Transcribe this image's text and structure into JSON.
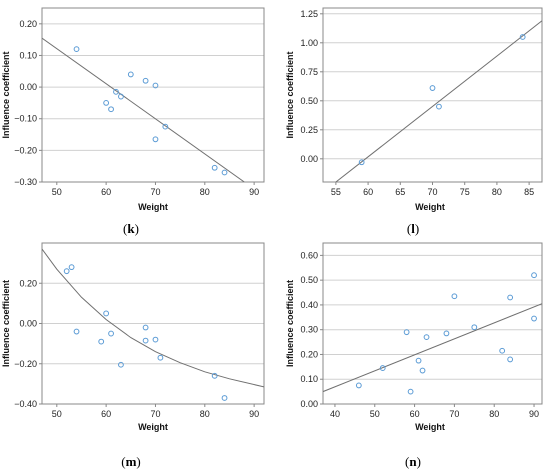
{
  "chart_data": [
    {
      "type": "scatter",
      "panel_label": "(k)",
      "xlabel": "Weight",
      "ylabel": "Influence coefficient",
      "xlim": [
        47,
        92
      ],
      "ylim": [
        -0.3,
        0.25
      ],
      "xticks": [
        50,
        60,
        70,
        80,
        90
      ],
      "yticks": [
        -0.3,
        -0.2,
        -0.1,
        0.0,
        0.1,
        0.2
      ],
      "ytick_labels": [
        "−0.30",
        "−0.20",
        "−0.10",
        "0.00",
        "0.10",
        "0.20"
      ],
      "grid": "horizontal",
      "fit": "linear",
      "fit_line": [
        [
          47,
          0.155
        ],
        [
          88,
          -0.3
        ]
      ],
      "points": [
        [
          54,
          0.12
        ],
        [
          60,
          -0.05
        ],
        [
          61,
          -0.07
        ],
        [
          62,
          -0.015
        ],
        [
          63,
          -0.03
        ],
        [
          65,
          0.04
        ],
        [
          68,
          0.02
        ],
        [
          70,
          0.005
        ],
        [
          70,
          -0.165
        ],
        [
          72,
          -0.125
        ],
        [
          82,
          -0.255
        ],
        [
          84,
          -0.27
        ]
      ]
    },
    {
      "type": "scatter",
      "panel_label": "(l)",
      "xlabel": "Weight",
      "ylabel": "Influence coefficient",
      "xlim": [
        53,
        87
      ],
      "ylim": [
        -0.2,
        1.3
      ],
      "xticks": [
        55,
        60,
        65,
        70,
        75,
        80,
        85
      ],
      "yticks": [
        0.0,
        0.25,
        0.5,
        0.75,
        1.0,
        1.25
      ],
      "ytick_labels": [
        "0.00",
        "0.25",
        "0.50",
        "0.75",
        "1.00",
        "1.25"
      ],
      "grid": "horizontal",
      "fit": "linear",
      "fit_line": [
        [
          55,
          -0.2
        ],
        [
          87,
          1.19
        ]
      ],
      "points": [
        [
          59,
          -0.03
        ],
        [
          70,
          0.61
        ],
        [
          71,
          0.45
        ],
        [
          84,
          1.05
        ]
      ]
    },
    {
      "type": "scatter",
      "panel_label": "(m)",
      "xlabel": "Weight",
      "ylabel": "Influence coefficient",
      "xlim": [
        47,
        92
      ],
      "ylim": [
        -0.4,
        0.4
      ],
      "xticks": [
        50,
        60,
        70,
        80,
        90
      ],
      "yticks": [
        -0.4,
        -0.2,
        0.0,
        0.2
      ],
      "ytick_labels": [
        "−0.40",
        "−0.20",
        "0.00",
        "0.20"
      ],
      "grid": "horizontal",
      "fit": "curve",
      "fit_curve": [
        [
          47,
          0.37
        ],
        [
          50,
          0.27
        ],
        [
          55,
          0.13
        ],
        [
          60,
          0.02
        ],
        [
          65,
          -0.07
        ],
        [
          70,
          -0.14
        ],
        [
          75,
          -0.195
        ],
        [
          80,
          -0.24
        ],
        [
          85,
          -0.275
        ],
        [
          92,
          -0.315
        ]
      ],
      "points": [
        [
          52,
          0.26
        ],
        [
          53,
          0.28
        ],
        [
          54,
          -0.04
        ],
        [
          59,
          -0.09
        ],
        [
          60,
          0.05
        ],
        [
          61,
          -0.05
        ],
        [
          63,
          -0.205
        ],
        [
          68,
          -0.02
        ],
        [
          68,
          -0.085
        ],
        [
          70,
          -0.08
        ],
        [
          71,
          -0.17
        ],
        [
          82,
          -0.26
        ],
        [
          84,
          -0.37
        ]
      ]
    },
    {
      "type": "scatter",
      "panel_label": "(n)",
      "xlabel": "Weight",
      "ylabel": "Influence coefficient",
      "xlim": [
        37,
        92
      ],
      "ylim": [
        0.0,
        0.65
      ],
      "xticks": [
        40,
        50,
        60,
        70,
        80,
        90
      ],
      "yticks": [
        0.0,
        0.1,
        0.2,
        0.3,
        0.4,
        0.5,
        0.6
      ],
      "ytick_labels": [
        "0.00",
        "0.10",
        "0.20",
        "0.30",
        "0.40",
        "0.50",
        "0.60"
      ],
      "grid": "horizontal",
      "fit": "linear",
      "fit_line": [
        [
          37,
          0.05
        ],
        [
          92,
          0.405
        ]
      ],
      "points": [
        [
          46,
          0.075
        ],
        [
          52,
          0.145
        ],
        [
          58,
          0.29
        ],
        [
          59,
          0.05
        ],
        [
          61,
          0.175
        ],
        [
          62,
          0.135
        ],
        [
          63,
          0.27
        ],
        [
          68,
          0.285
        ],
        [
          70,
          0.435
        ],
        [
          75,
          0.31
        ],
        [
          82,
          0.215
        ],
        [
          84,
          0.43
        ],
        [
          84,
          0.18
        ],
        [
          90,
          0.52
        ],
        [
          90,
          0.345
        ]
      ]
    }
  ],
  "colors": {
    "marker": "#5b9bd5",
    "fit_line": "#707070",
    "grid": "#d0d0d0",
    "axis": "#888888"
  }
}
